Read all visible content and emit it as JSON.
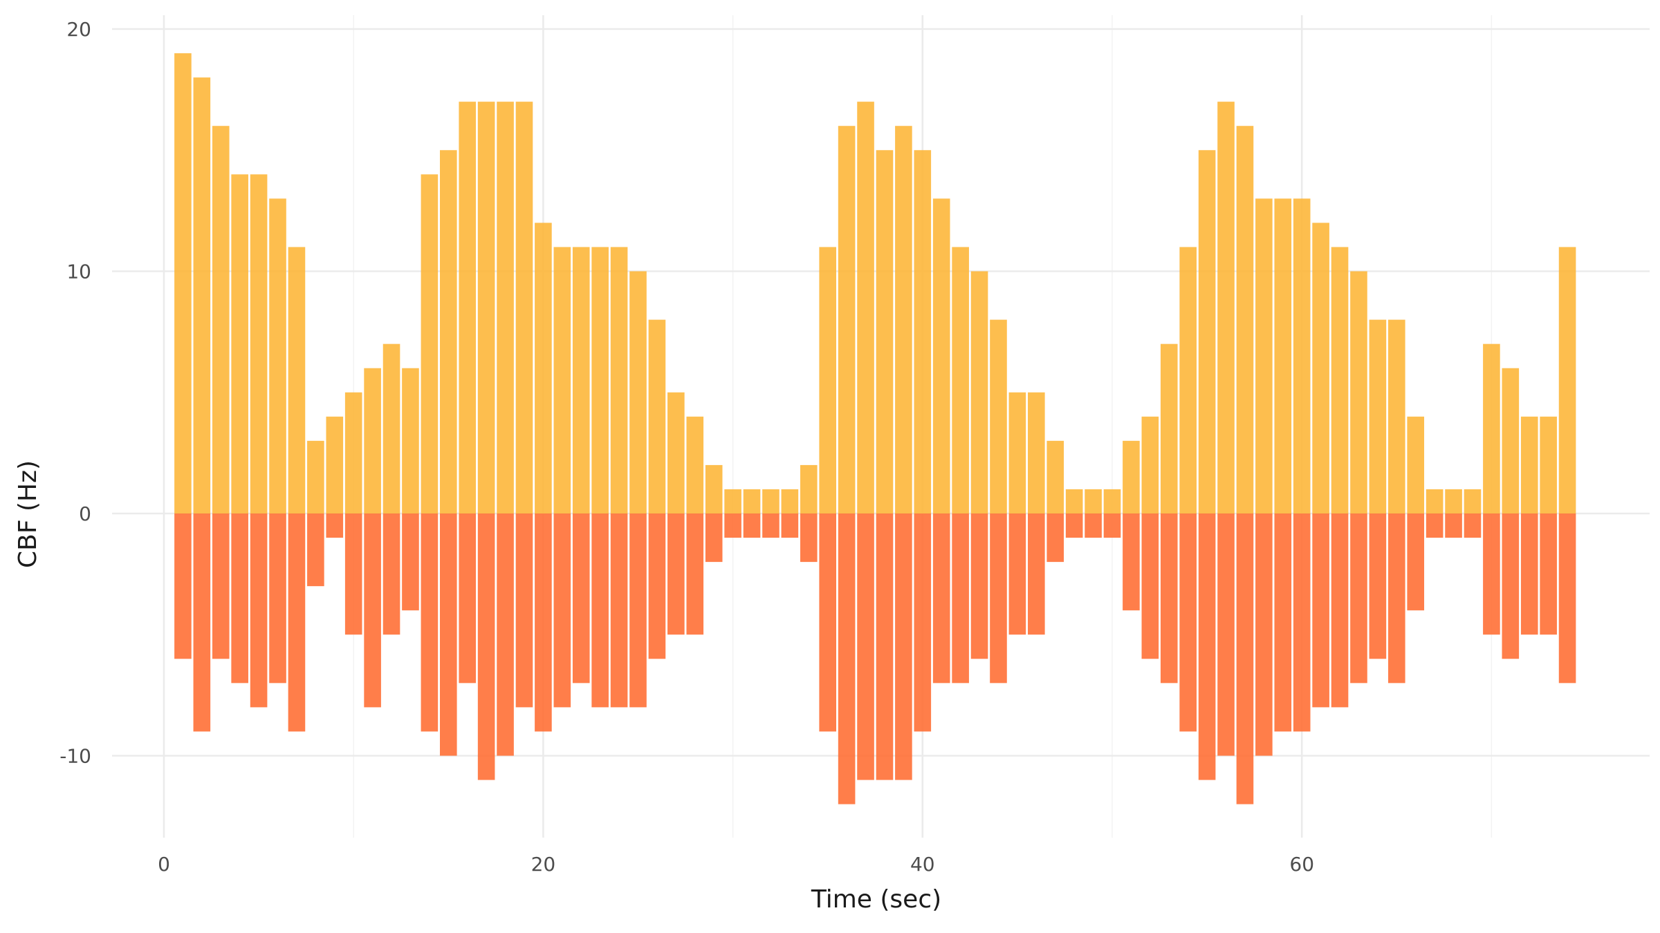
{
  "chart_data": {
    "type": "bar",
    "title": "",
    "xlabel": "Time (sec)",
    "ylabel": "CBF (Hz)",
    "xlim": [
      0,
      78
    ],
    "ylim": [
      -12.5,
      20.5
    ],
    "x_ticks": [
      0,
      20,
      40,
      60
    ],
    "y_ticks": [
      20,
      10,
      0,
      -10
    ],
    "x_tick_labels": [
      "0",
      "20",
      "40",
      "60"
    ],
    "y_tick_labels": [
      "20",
      "10",
      "0",
      "-10"
    ],
    "grid": true,
    "legend": "none",
    "x": [
      1,
      2,
      3,
      4,
      5,
      6,
      7,
      8,
      9,
      10,
      11,
      12,
      13,
      14,
      15,
      16,
      17,
      18,
      19,
      20,
      21,
      22,
      23,
      24,
      25,
      26,
      27,
      28,
      29,
      30,
      31,
      32,
      33,
      34,
      35,
      36,
      37,
      38,
      39,
      40,
      41,
      42,
      43,
      44,
      45,
      46,
      47,
      48,
      49,
      50,
      51,
      52,
      53,
      54,
      55,
      56,
      57,
      58,
      59,
      60,
      61,
      62,
      63,
      64,
      65,
      66,
      67,
      68,
      69,
      70,
      71,
      72,
      73,
      74
    ],
    "series": [
      {
        "color": "#FDB73B",
        "values": [
          19,
          18,
          16,
          14,
          14,
          13,
          11,
          3,
          4,
          5,
          6,
          7,
          6,
          14,
          15,
          17,
          17,
          17,
          17,
          12,
          11,
          11,
          11,
          11,
          10,
          8,
          5,
          4,
          2,
          1,
          1,
          1,
          1,
          2,
          11,
          16,
          17,
          15,
          16,
          15,
          13,
          11,
          10,
          8,
          5,
          5,
          3,
          1,
          1,
          1,
          3,
          4,
          7,
          11,
          15,
          17,
          16,
          13,
          13,
          13,
          12,
          11,
          10,
          8,
          8,
          4,
          1,
          1,
          1,
          7,
          6,
          4,
          4,
          11
        ]
      },
      {
        "color": "#FF7036",
        "values": [
          -6,
          -9,
          -6,
          -7,
          -8,
          -7,
          -9,
          -3,
          -1,
          -5,
          -8,
          -5,
          -4,
          -9,
          -10,
          -7,
          -11,
          -10,
          -8,
          -9,
          -8,
          -7,
          -8,
          -8,
          -8,
          -6,
          -5,
          -5,
          -2,
          -1,
          -1,
          -1,
          -1,
          -2,
          -9,
          -12,
          -11,
          -11,
          -11,
          -9,
          -7,
          -7,
          -6,
          -7,
          -5,
          -5,
          -2,
          -1,
          -1,
          -1,
          -4,
          -6,
          -7,
          -9,
          -11,
          -10,
          -12,
          -10,
          -9,
          -9,
          -8,
          -8,
          -7,
          -6,
          -7,
          -4,
          -1,
          -1,
          -1,
          -5,
          -6,
          -5,
          -5,
          -7
        ]
      }
    ]
  }
}
